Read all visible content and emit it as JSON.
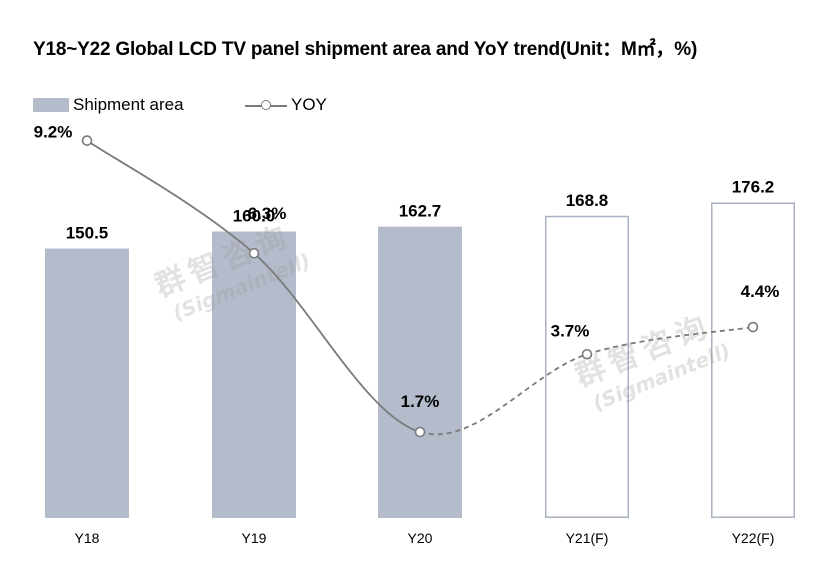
{
  "title": "Y18~Y22 Global LCD TV panel shipment area and YoY trend(Unit：M㎡，%)",
  "legend": {
    "bar_label": "Shipment area",
    "line_label": "YOY"
  },
  "watermark": {
    "cn": "群智咨询",
    "en": "(Sigmaintell)"
  },
  "colors": {
    "bar_fill": "#b4bccc",
    "bar_outline": "#a8b2c2",
    "line": "#7a7a7a"
  },
  "chart_data": {
    "type": "bar",
    "categories": [
      "Y18",
      "Y19",
      "Y20",
      "Y21(F)",
      "Y22(F)"
    ],
    "series": [
      {
        "name": "Shipment area",
        "type": "bar",
        "values": [
          150.5,
          160.0,
          162.7,
          168.8,
          176.2
        ],
        "labels": [
          "150.5",
          "160.0",
          "162.7",
          "168.8",
          "176.2"
        ],
        "forecast": [
          false,
          false,
          false,
          true,
          true
        ]
      },
      {
        "name": "YOY",
        "type": "line",
        "values": [
          9.2,
          6.3,
          1.7,
          3.7,
          4.4
        ],
        "labels": [
          "9.2%",
          "6.3%",
          "1.7%",
          "3.7%",
          "4.4%"
        ],
        "forecast": [
          false,
          false,
          false,
          true,
          true
        ]
      }
    ],
    "ylim_bar": [
      0,
      190
    ],
    "ylim_line": [
      0,
      10
    ],
    "grid": false,
    "legend_position": "top-left"
  }
}
